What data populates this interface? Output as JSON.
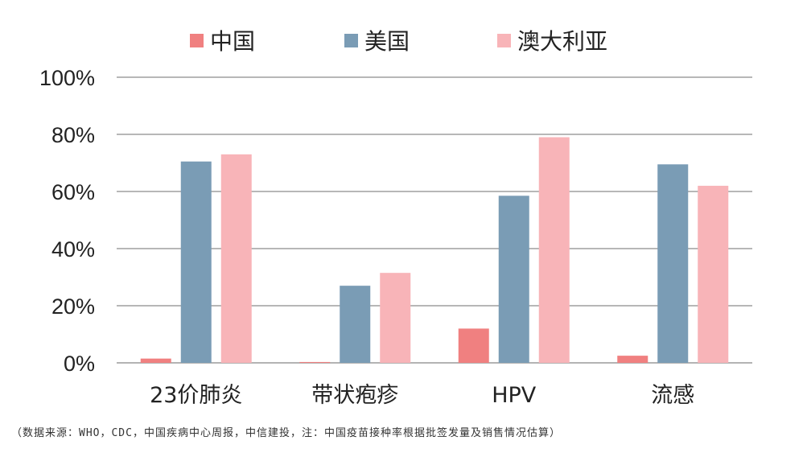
{
  "chart_data": {
    "type": "bar",
    "categories": [
      "23价肺炎",
      "带状疱疹",
      "HPV",
      "流感"
    ],
    "series": [
      {
        "name": "中国",
        "color": "#f08080",
        "values": [
          1.5,
          0.3,
          12,
          2.5
        ]
      },
      {
        "name": "美国",
        "color": "#7a9cb5",
        "values": [
          70.5,
          27,
          58.5,
          69.5
        ]
      },
      {
        "name": "澳大利亚",
        "color": "#f8b4b8",
        "values": [
          73,
          31.5,
          79,
          62
        ]
      }
    ],
    "ylim": [
      0,
      100
    ],
    "yticks": [
      "0%",
      "20%",
      "40%",
      "60%",
      "80%",
      "100%"
    ],
    "grid": true,
    "legend_position": "top"
  },
  "source_note": "（数据来源：WHO，CDC，中国疾病中心周报，中信建投，注：中国疫苗接种率根据批签发量及销售情况估算）"
}
